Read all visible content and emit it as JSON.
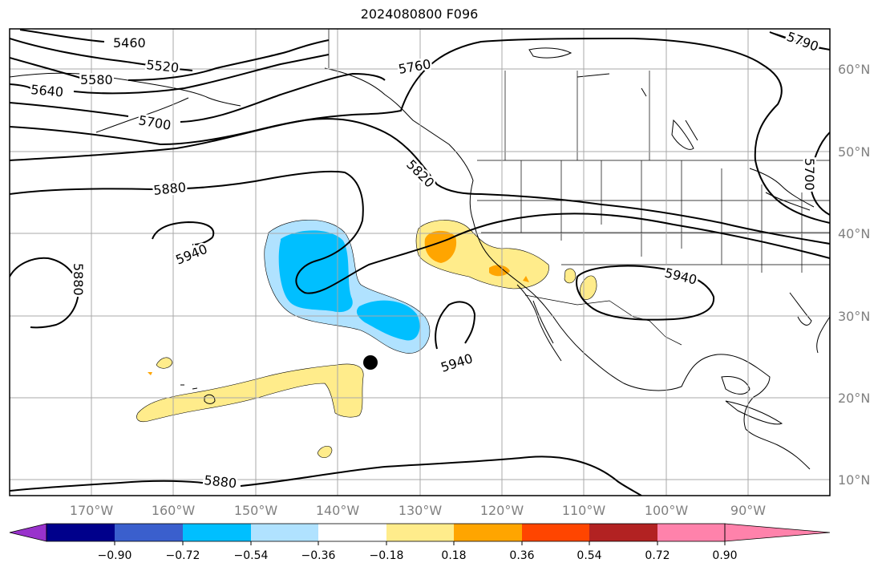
{
  "title": "2024080800 F096",
  "map": {
    "lat_labels": [
      {
        "text": "60°N",
        "lat": 60
      },
      {
        "text": "50°N",
        "lat": 50
      },
      {
        "text": "40°N",
        "lat": 40
      },
      {
        "text": "30°N",
        "lat": 30
      },
      {
        "text": "20°N",
        "lat": 20
      },
      {
        "text": "10°N",
        "lat": 10
      }
    ],
    "lon_labels": [
      {
        "text": "170°W",
        "lon": -170
      },
      {
        "text": "160°W",
        "lon": -160
      },
      {
        "text": "150°W",
        "lon": -150
      },
      {
        "text": "140°W",
        "lon": -140
      },
      {
        "text": "130°W",
        "lon": -130
      },
      {
        "text": "120°W",
        "lon": -120
      },
      {
        "text": "110°W",
        "lon": -110
      },
      {
        "text": "100°W",
        "lon": -100
      },
      {
        "text": "90°W",
        "lon": -90
      }
    ],
    "contour_labels": [
      "5460",
      "5520",
      "5580",
      "5640",
      "5700",
      "5760",
      "5790",
      "5700",
      "5820",
      "5880",
      "5940",
      "5880",
      "5940",
      "5940",
      "5880"
    ],
    "storm_marker": {
      "lat": 24.2,
      "lon": -135.7
    }
  },
  "colorbar": {
    "colors": [
      "#9932cc",
      "#00008b",
      "#3a5fcd",
      "#00bfff",
      "#b0e2ff",
      "#ffffff",
      "#ffec8b",
      "#ffa500",
      "#ff4500",
      "#b22222",
      "#ff82ab"
    ],
    "tick_labels": [
      "−0.90",
      "−0.72",
      "−0.54",
      "−0.36",
      "−0.18",
      "0.18",
      "0.36",
      "0.54",
      "0.72",
      "0.90"
    ]
  }
}
